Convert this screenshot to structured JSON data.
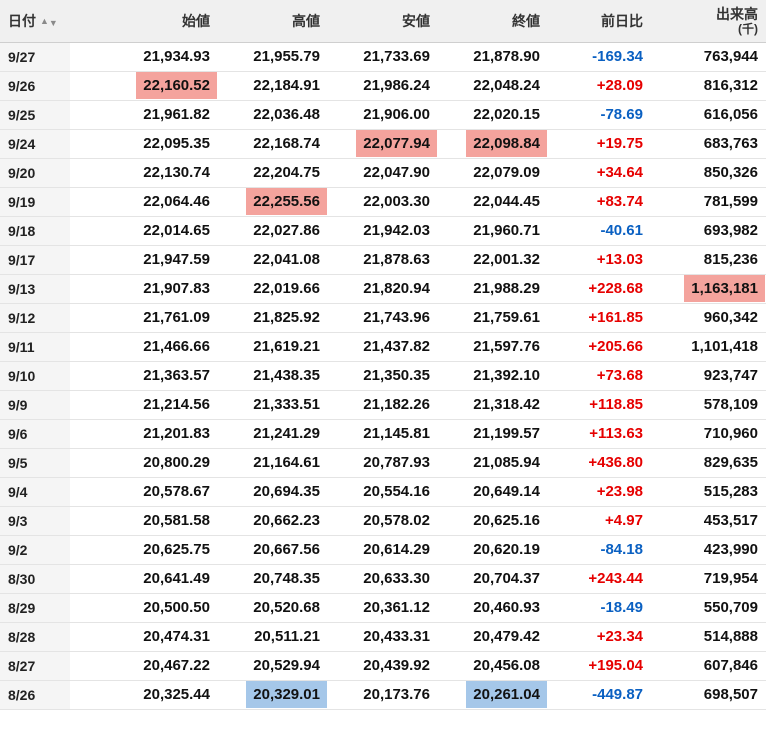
{
  "colors": {
    "positive_change": "#e60000",
    "negative_change": "#0a60c2",
    "highlight_period_high": "#f4a39d",
    "highlight_period_low": "#a5c7e9",
    "header_background": "#f0f0f0",
    "date_column_background": "#f5f5f5"
  },
  "icons": {
    "sort_asc": "▲",
    "sort_desc": "▼"
  },
  "table": {
    "headers": {
      "date": "日付",
      "open": "始値",
      "high": "高値",
      "low": "安値",
      "close": "終値",
      "change": "前日比",
      "volume": "出来高",
      "volume_unit": "(千)"
    },
    "rows": [
      {
        "date": "9/27",
        "open": "21,934.93",
        "high": "21,955.79",
        "low": "21,733.69",
        "close": "21,878.90",
        "change": "-169.34",
        "volume": "763,944"
      },
      {
        "date": "9/26",
        "open": "22,160.52",
        "high": "22,184.91",
        "low": "21,986.24",
        "close": "22,048.24",
        "change": "+28.09",
        "volume": "816,312",
        "hl": {
          "open": "max"
        }
      },
      {
        "date": "9/25",
        "open": "21,961.82",
        "high": "22,036.48",
        "low": "21,906.00",
        "close": "22,020.15",
        "change": "-78.69",
        "volume": "616,056"
      },
      {
        "date": "9/24",
        "open": "22,095.35",
        "high": "22,168.74",
        "low": "22,077.94",
        "close": "22,098.84",
        "change": "+19.75",
        "volume": "683,763",
        "hl": {
          "low": "max",
          "close": "max"
        }
      },
      {
        "date": "9/20",
        "open": "22,130.74",
        "high": "22,204.75",
        "low": "22,047.90",
        "close": "22,079.09",
        "change": "+34.64",
        "volume": "850,326"
      },
      {
        "date": "9/19",
        "open": "22,064.46",
        "high": "22,255.56",
        "low": "22,003.30",
        "close": "22,044.45",
        "change": "+83.74",
        "volume": "781,599",
        "hl": {
          "high": "max"
        }
      },
      {
        "date": "9/18",
        "open": "22,014.65",
        "high": "22,027.86",
        "low": "21,942.03",
        "close": "21,960.71",
        "change": "-40.61",
        "volume": "693,982"
      },
      {
        "date": "9/17",
        "open": "21,947.59",
        "high": "22,041.08",
        "low": "21,878.63",
        "close": "22,001.32",
        "change": "+13.03",
        "volume": "815,236"
      },
      {
        "date": "9/13",
        "open": "21,907.83",
        "high": "22,019.66",
        "low": "21,820.94",
        "close": "21,988.29",
        "change": "+228.68",
        "volume": "1,163,181",
        "hl": {
          "volume": "max"
        }
      },
      {
        "date": "9/12",
        "open": "21,761.09",
        "high": "21,825.92",
        "low": "21,743.96",
        "close": "21,759.61",
        "change": "+161.85",
        "volume": "960,342"
      },
      {
        "date": "9/11",
        "open": "21,466.66",
        "high": "21,619.21",
        "low": "21,437.82",
        "close": "21,597.76",
        "change": "+205.66",
        "volume": "1,101,418"
      },
      {
        "date": "9/10",
        "open": "21,363.57",
        "high": "21,438.35",
        "low": "21,350.35",
        "close": "21,392.10",
        "change": "+73.68",
        "volume": "923,747"
      },
      {
        "date": "9/9",
        "open": "21,214.56",
        "high": "21,333.51",
        "low": "21,182.26",
        "close": "21,318.42",
        "change": "+118.85",
        "volume": "578,109"
      },
      {
        "date": "9/6",
        "open": "21,201.83",
        "high": "21,241.29",
        "low": "21,145.81",
        "close": "21,199.57",
        "change": "+113.63",
        "volume": "710,960"
      },
      {
        "date": "9/5",
        "open": "20,800.29",
        "high": "21,164.61",
        "low": "20,787.93",
        "close": "21,085.94",
        "change": "+436.80",
        "volume": "829,635"
      },
      {
        "date": "9/4",
        "open": "20,578.67",
        "high": "20,694.35",
        "low": "20,554.16",
        "close": "20,649.14",
        "change": "+23.98",
        "volume": "515,283"
      },
      {
        "date": "9/3",
        "open": "20,581.58",
        "high": "20,662.23",
        "low": "20,578.02",
        "close": "20,625.16",
        "change": "+4.97",
        "volume": "453,517"
      },
      {
        "date": "9/2",
        "open": "20,625.75",
        "high": "20,667.56",
        "low": "20,614.29",
        "close": "20,620.19",
        "change": "-84.18",
        "volume": "423,990"
      },
      {
        "date": "8/30",
        "open": "20,641.49",
        "high": "20,748.35",
        "low": "20,633.30",
        "close": "20,704.37",
        "change": "+243.44",
        "volume": "719,954"
      },
      {
        "date": "8/29",
        "open": "20,500.50",
        "high": "20,520.68",
        "low": "20,361.12",
        "close": "20,460.93",
        "change": "-18.49",
        "volume": "550,709"
      },
      {
        "date": "8/28",
        "open": "20,474.31",
        "high": "20,511.21",
        "low": "20,433.31",
        "close": "20,479.42",
        "change": "+23.34",
        "volume": "514,888"
      },
      {
        "date": "8/27",
        "open": "20,467.22",
        "high": "20,529.94",
        "low": "20,439.92",
        "close": "20,456.08",
        "change": "+195.04",
        "volume": "607,846"
      },
      {
        "date": "8/26",
        "open": "20,325.44",
        "high": "20,329.01",
        "low": "20,173.76",
        "close": "20,261.04",
        "change": "-449.87",
        "volume": "698,507",
        "hl": {
          "high": "min",
          "close": "min"
        }
      }
    ]
  }
}
